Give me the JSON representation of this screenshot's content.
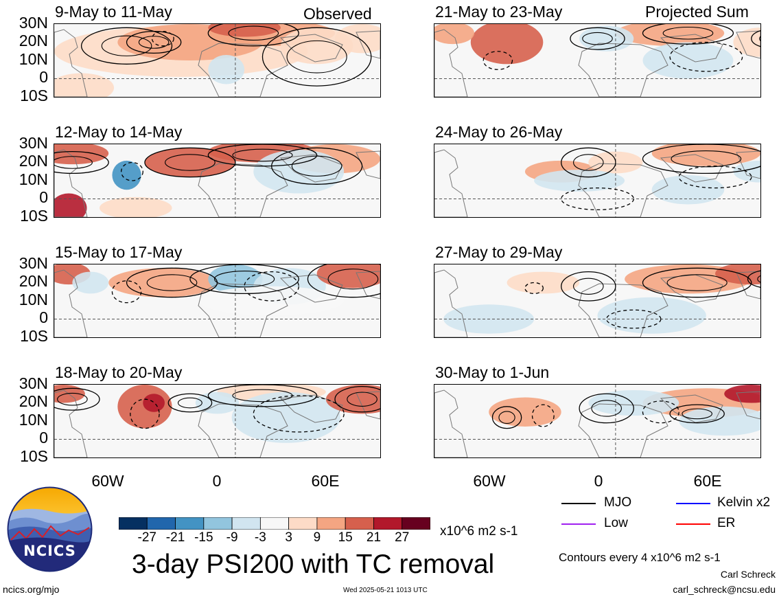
{
  "column_headers": {
    "left": "Observed",
    "right": "Projected Sum"
  },
  "panels": [
    {
      "title": "9-May to 11-May"
    },
    {
      "title": "12-May to 14-May"
    },
    {
      "title": "15-May to 17-May"
    },
    {
      "title": "18-May to 20-May"
    },
    {
      "title": "21-May to 23-May"
    },
    {
      "title": "24-May to 26-May"
    },
    {
      "title": "27-May to 29-May"
    },
    {
      "title": "30-May to 1-Jun"
    }
  ],
  "lat_labels": [
    "30N",
    "20N",
    "10N",
    "0",
    "10S"
  ],
  "lon_labels": [
    "60W",
    "0",
    "60E"
  ],
  "colorbar": {
    "ticks": [
      "-27",
      "-21",
      "-15",
      "-9",
      "-3",
      "3",
      "9",
      "15",
      "21",
      "27"
    ],
    "units": "x10^6 m2 s-1",
    "colors": [
      "#053061",
      "#2166ac",
      "#4393c3",
      "#92c5de",
      "#d1e5f0",
      "#f7f7f7",
      "#fddbc7",
      "#f4a582",
      "#d6604d",
      "#b2182b",
      "#67001f"
    ]
  },
  "main_title": "3-day PSI200 with TC removal",
  "legend": {
    "items": [
      {
        "label": "MJO",
        "color": "#000000"
      },
      {
        "label": "Kelvin x2",
        "color": "#0000ff"
      },
      {
        "label": "Low",
        "color": "#a020f0"
      },
      {
        "label": "ER",
        "color": "#ff0000"
      }
    ],
    "contour_note": "Contours every 4 x10^6 m2 s-1"
  },
  "logo": {
    "text": "NCICS"
  },
  "footer": {
    "url": "ncics.org/mjo",
    "timestamp": "Wed 2025-05-21 1013 UTC",
    "author": "Carl Schreck",
    "email": "carl_schreck@ncsu.edu"
  }
}
